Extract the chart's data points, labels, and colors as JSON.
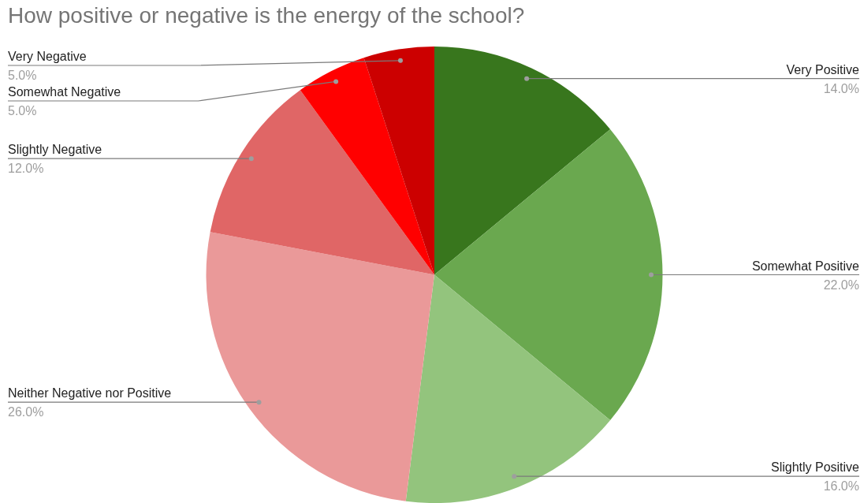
{
  "chart_data": {
    "type": "pie",
    "title": "How positive or negative is the energy of the school?",
    "categories": [
      "Very Positive",
      "Somewhat Positive",
      "Slightly Positive",
      "Neither Negative nor Positive",
      "Slightly Negative",
      "Somewhat Negative",
      "Very Negative"
    ],
    "values": [
      14,
      22,
      16,
      26,
      12,
      5,
      5
    ],
    "colors": [
      "#38761d",
      "#6aa84f",
      "#93c47d",
      "#ea9999",
      "#e06666",
      "#ff0000",
      "#cc0000"
    ],
    "value_labels": [
      "14.0%",
      "22.0%",
      "16.0%",
      "26.0%",
      "12.0%",
      "5.0%",
      "5.0%"
    ]
  }
}
